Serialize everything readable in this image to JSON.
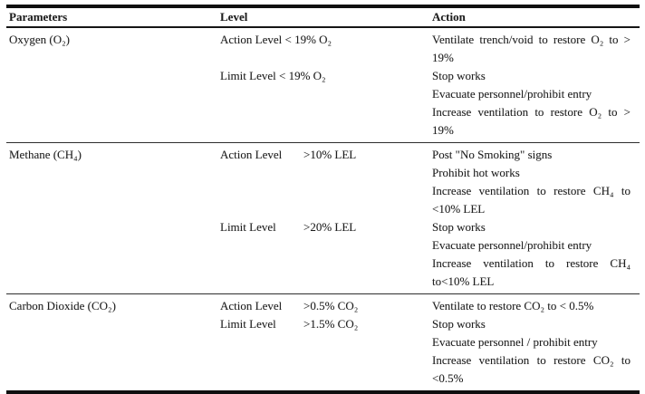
{
  "document": {
    "colors": {
      "text": "#1f1f1f",
      "rule_heavy": "#101010",
      "rule_header": "#161616",
      "rule_light": "#2e2e2e",
      "background": "#ffffff"
    },
    "table": {
      "headers": {
        "parameters": "Parameters",
        "level": "Level",
        "action": "Action"
      },
      "groups": [
        {
          "parameter": "Oxygen (O₂)",
          "levels": [
            {
              "label": "Action Level",
              "value": "< 19% O₂"
            },
            {
              "label": "Limit Level",
              "value": "< 19% O₂"
            }
          ],
          "actions": [
            "Ventilate trench/void to restore O₂ to > 19%",
            "Stop works",
            "Evacuate personnel/prohibit entry",
            "Increase ventilation to restore O₂ to > 19%"
          ]
        },
        {
          "parameter": "Methane (CH₄)",
          "levels": [
            {
              "label": "Action Level",
              "value": ">10% LEL"
            },
            {
              "label": "Limit Level",
              "value": ">20% LEL"
            }
          ],
          "actions": [
            "Post \"No Smoking\" signs",
            "Prohibit hot works",
            "Increase ventilation to restore CH₄ to <10% LEL",
            "Stop works",
            "Evacuate personnel/prohibit entry",
            "Increase ventilation to restore CH₄ to<10% LEL"
          ]
        },
        {
          "parameter": "Carbon Dioxide (CO₂)",
          "levels": [
            {
              "label": "Action Level",
              "value": ">0.5% CO₂"
            },
            {
              "label": "Limit Level",
              "value": ">1.5% CO₂"
            }
          ],
          "actions": [
            "Ventilate to restore CO₂ to < 0.5%",
            "Stop works",
            "Evacuate personnel / prohibit entry",
            "Increase ventilation to restore CO₂ to <0.5%"
          ]
        }
      ]
    }
  }
}
